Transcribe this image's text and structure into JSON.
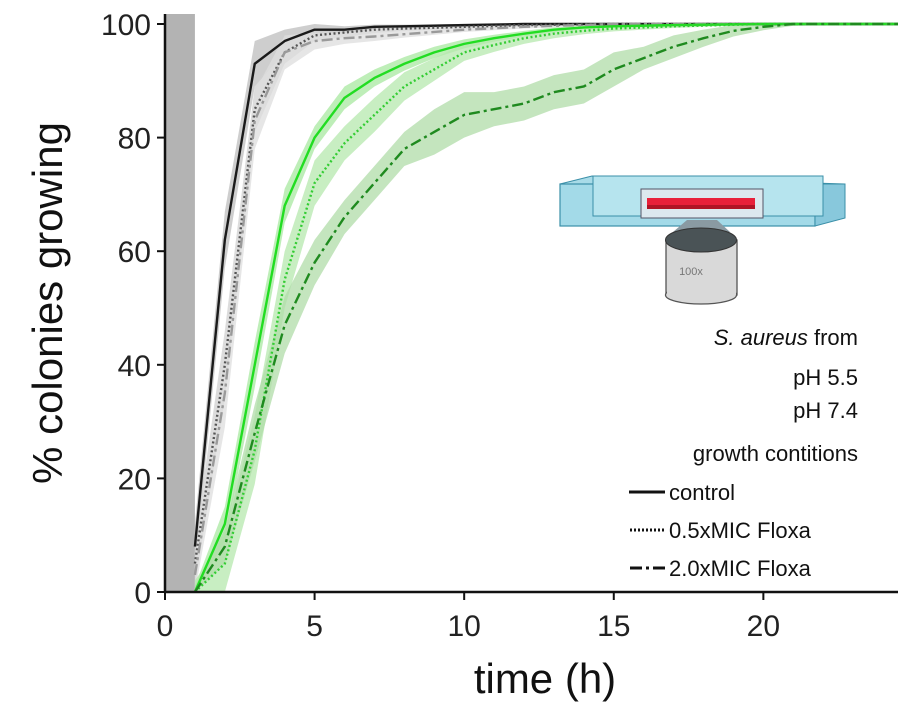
{
  "chart_data": {
    "type": "line",
    "xlabel": "time (h)",
    "ylabel": "% colonies growing",
    "xlim": [
      0,
      24.5
    ],
    "ylim": [
      0,
      100
    ],
    "xticks": [
      0,
      5,
      10,
      15,
      20
    ],
    "yticks": [
      0,
      20,
      40,
      60,
      80,
      100
    ],
    "grid": false,
    "legend_position": "right",
    "shaded_band": {
      "x_range": [
        0,
        1
      ],
      "color": "#b3b3b3"
    },
    "series": [
      {
        "condition": "pH 7.4 control",
        "style": "solid",
        "color": "#1a1a1a",
        "band": "#bdbdbd",
        "x": [
          1,
          2,
          3,
          4,
          5,
          6,
          7,
          8,
          10,
          12,
          15,
          20,
          24.5
        ],
        "y": [
          8,
          62,
          93,
          97,
          99,
          99,
          99.5,
          99.6,
          99.8,
          100,
          100,
          100,
          100
        ],
        "spread": [
          4,
          5,
          4,
          2,
          1,
          0.6,
          0.4,
          0.3,
          0.2,
          0,
          0,
          0,
          0
        ]
      },
      {
        "condition": "pH 7.4 0.5xMIC Floxa",
        "style": "dotted",
        "color": "#555555",
        "band": "#d0d0d0",
        "x": [
          1,
          2,
          3,
          4,
          5,
          6,
          7,
          8,
          10,
          12,
          15,
          20,
          24.5
        ],
        "y": [
          5,
          40,
          85,
          95,
          98,
          98.5,
          99,
          99.2,
          99.5,
          99.8,
          100,
          100,
          100
        ],
        "spread": [
          4,
          6,
          4,
          2,
          1,
          0.8,
          0.6,
          0.4,
          0.3,
          0.2,
          0,
          0,
          0
        ]
      },
      {
        "condition": "pH 7.4 2.0xMIC Floxa",
        "style": "dashdot",
        "color": "#9a9a9a",
        "band": "#dedede",
        "x": [
          1,
          2,
          3,
          4,
          5,
          6,
          7,
          8,
          10,
          12,
          15,
          20,
          24.5
        ],
        "y": [
          3,
          35,
          83,
          95,
          97,
          97.5,
          97.8,
          98.2,
          99,
          99.5,
          100,
          100,
          100
        ],
        "spread": [
          3,
          6,
          5,
          3,
          1.5,
          1,
          0.8,
          0.6,
          0.4,
          0.3,
          0.1,
          0,
          0
        ]
      },
      {
        "condition": "pH 5.5 control",
        "style": "solid",
        "color": "#22dd22",
        "band": "#a8e8a0",
        "x": [
          1,
          2,
          3,
          4,
          5,
          6,
          7,
          8,
          9,
          10,
          11,
          12,
          13,
          14,
          15,
          17,
          20,
          24.5
        ],
        "y": [
          0,
          12,
          40,
          68,
          80,
          87,
          90.5,
          93,
          95,
          96.5,
          97.5,
          98.3,
          99,
          99.4,
          99.6,
          99.8,
          100,
          100
        ],
        "spread": [
          1,
          3,
          4,
          3,
          2,
          2,
          1.5,
          1.2,
          1,
          0.8,
          0.6,
          0.5,
          0.4,
          0.3,
          0.2,
          0.1,
          0,
          0
        ]
      },
      {
        "condition": "pH 5.5 0.5xMIC Floxa",
        "style": "dotted",
        "color": "#33cc33",
        "band": "#b5e8ad",
        "x": [
          1,
          2,
          3,
          4,
          5,
          6,
          7,
          8,
          9,
          10,
          11,
          12,
          13,
          14,
          15,
          17,
          20,
          24.5
        ],
        "y": [
          0,
          5,
          25,
          55,
          72,
          79,
          84,
          89,
          92,
          95,
          96.3,
          97.5,
          98.3,
          98.8,
          99.2,
          99.6,
          100,
          100
        ],
        "spread": [
          2,
          5,
          6,
          5,
          4,
          3,
          3,
          2.5,
          2,
          1.5,
          1.2,
          1,
          0.8,
          0.6,
          0.5,
          0.3,
          0.1,
          0
        ]
      },
      {
        "condition": "pH 5.5 2.0xMIC Floxa",
        "style": "dashdot",
        "color": "#1f8a1f",
        "band": "#b0dca8",
        "x": [
          1,
          2,
          3,
          4,
          5,
          6,
          7,
          8,
          9,
          10,
          11,
          12,
          13,
          14,
          15,
          16,
          17,
          18,
          19,
          20,
          21,
          24.5
        ],
        "y": [
          0,
          8,
          28,
          47,
          58,
          66,
          72,
          78,
          81,
          84,
          85,
          86,
          88,
          89,
          92,
          94,
          96,
          97.5,
          98.8,
          99.5,
          100,
          100
        ],
        "spread": [
          1,
          3,
          5,
          5,
          4,
          3,
          3,
          3,
          4,
          4,
          3,
          3,
          3,
          3,
          3,
          2,
          2,
          1.5,
          1,
          0.6,
          0.3,
          0
        ]
      }
    ]
  },
  "legend": {
    "organism": "S. aureus",
    "from": " from",
    "ph_low": "pH 5.5",
    "ph_high": "pH 7.4",
    "conditions_title": "growth contitions",
    "items": [
      {
        "label": "control",
        "style": "solid"
      },
      {
        "label": "0.5xMIC Floxa",
        "style": "dotted"
      },
      {
        "label": "2.0xMIC Floxa",
        "style": "dashdot"
      }
    ]
  },
  "inset": {
    "objective_label": "100x"
  },
  "colors": {
    "ph_low": "#22ee22",
    "ph_high": "#111111",
    "axis": "#111111"
  }
}
